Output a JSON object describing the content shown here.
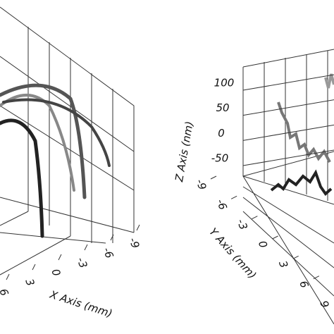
{
  "chart_data": [
    {
      "type": "line3d",
      "xlabel": "X Axis (mm)",
      "xlim": [
        -9,
        6
      ],
      "xticks": [
        -9,
        -6,
        -3,
        0,
        3,
        6
      ]
    },
    {
      "type": "line3d",
      "zlabel": "Z Axis (nm)",
      "zlim": [
        -50,
        100
      ],
      "zticks": [
        -50,
        0,
        50,
        100
      ],
      "ylabel": "Y Axis (mm)",
      "ylim": [
        -9,
        9
      ],
      "yticks": [
        -9,
        -6,
        -3,
        0,
        3,
        6,
        9
      ]
    }
  ]
}
